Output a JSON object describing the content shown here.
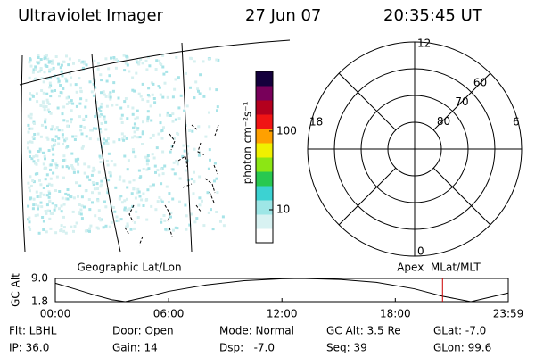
{
  "header": {
    "title": "Ultraviolet Imager",
    "date": "27 Jun 07",
    "time": "20:35:45 UT"
  },
  "colorbar": {
    "label": "photon cm⁻²s⁻¹",
    "log": true,
    "lim": [
      3.8,
      575
    ],
    "ticks": [
      10,
      100
    ],
    "colors": [
      "#ffffff",
      "#d8f2f2",
      "#9ee6e6",
      "#3cd2d2",
      "#28c850",
      "#8ce614",
      "#f0f000",
      "#ffa000",
      "#f01414",
      "#b4001e",
      "#78005a",
      "#14003c"
    ]
  },
  "polar": {
    "rlim": [
      90,
      50
    ],
    "rings": [
      80,
      70,
      60,
      50
    ],
    "rticks": [
      80,
      70,
      60
    ],
    "hours": {
      "top": "12",
      "right": "6",
      "bottom": "0",
      "left": "18"
    }
  },
  "panel_labels": {
    "left": "Geographic Lat/Lon",
    "right": "Apex  MLat/MLT"
  },
  "chart_data": {
    "type": "line",
    "ylabel": "GC Alt",
    "color": "#000000",
    "x": [
      0,
      1,
      2,
      3,
      3.7,
      5,
      6,
      8,
      10,
      12,
      13,
      15,
      17,
      19,
      20.5,
      22,
      23.98
    ],
    "values": [
      7.5,
      5.8,
      4.0,
      2.4,
      1.8,
      3.5,
      5.0,
      7.0,
      8.3,
      8.9,
      9.0,
      8.7,
      7.8,
      5.8,
      3.5,
      1.8,
      4.5
    ],
    "xlim": [
      0,
      23.98
    ],
    "ylim": [
      1.8,
      9.0
    ],
    "xticks": [
      {
        "value": 0,
        "label": "00:00"
      },
      {
        "value": 6,
        "label": "06:00"
      },
      {
        "value": 12,
        "label": "12:00"
      },
      {
        "value": 18,
        "label": "18:00"
      },
      {
        "value": 23.98,
        "label": "23:59"
      }
    ],
    "yticks": [
      {
        "value": 9.0,
        "label": "9.0"
      },
      1.8
    ],
    "marker_x": 20.5,
    "marker_color": "#cc0000"
  },
  "info": [
    [
      "Flt: LBHL",
      "Door: Open",
      "Mode: Normal",
      "GC Alt: 3.5 Re",
      "GLat: -7.0"
    ],
    [
      "IP: 36.0",
      "Gain: 14",
      "Dsp:   -7.0",
      "Seq: 39",
      "GLon: 99.6"
    ]
  ]
}
